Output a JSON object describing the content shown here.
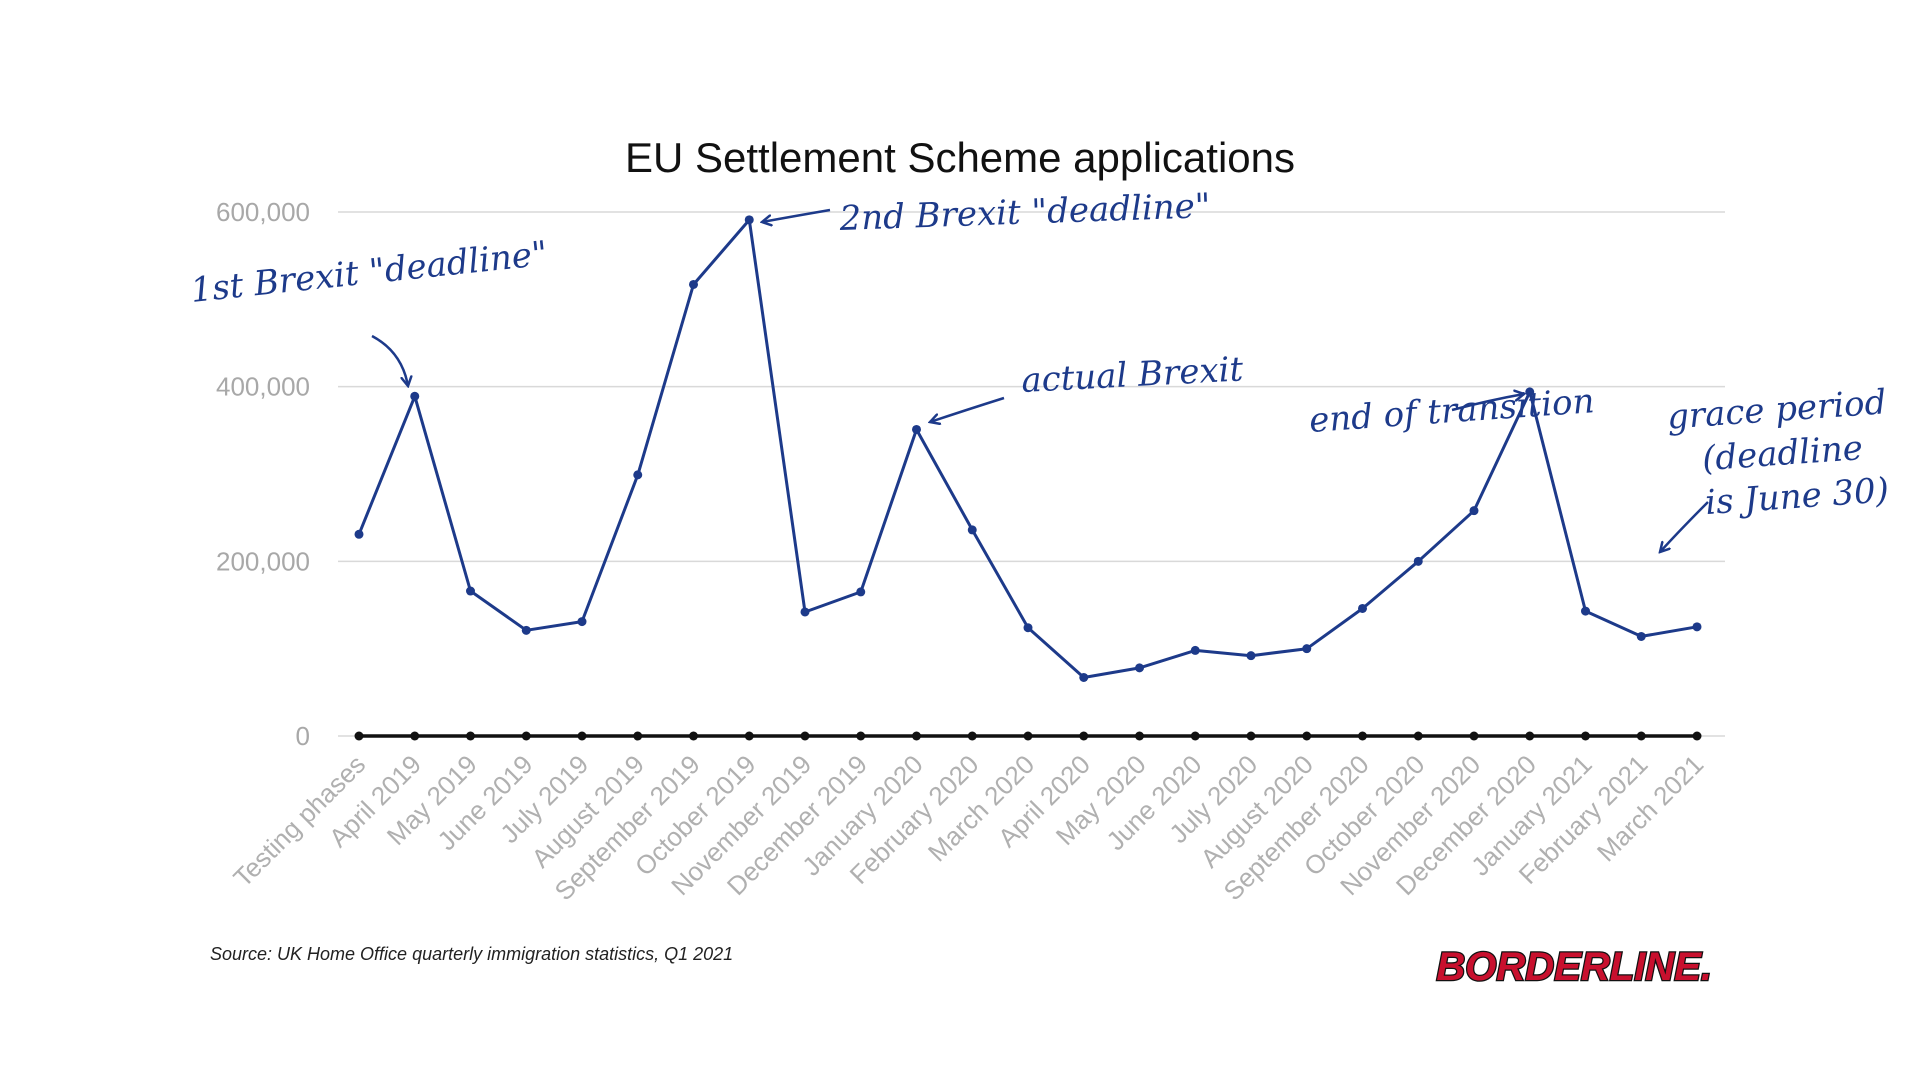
{
  "chart_data": {
    "type": "line",
    "title": "EU Settlement Scheme applications",
    "xlabel": "",
    "ylabel": "",
    "ylim": [
      0,
      600000
    ],
    "yticks": [
      0,
      200000,
      400000,
      600000
    ],
    "ytick_labels": [
      "0",
      "200,000",
      "400,000",
      "600,000"
    ],
    "grid": true,
    "legend": "none",
    "categories": [
      "Testing phases",
      "April 2019",
      "May 2019",
      "June 2019",
      "July 2019",
      "August 2019",
      "September 2019",
      "October 2019",
      "November 2019",
      "December 2019",
      "January 2020",
      "February 2020",
      "March 2020",
      "April 2020",
      "May 2020",
      "June 2020",
      "July 2020",
      "August 2020",
      "September 2020",
      "October 2020",
      "November 2020",
      "December 2020",
      "January 2021",
      "February 2021",
      "March 2021"
    ],
    "series": [
      {
        "color": "#1d3a8a",
        "values": [
          231000,
          389000,
          166000,
          121000,
          131000,
          299000,
          517000,
          591000,
          142000,
          165000,
          351000,
          236000,
          124000,
          67000,
          78000,
          98000,
          92000,
          100000,
          146000,
          200000,
          258000,
          394000,
          143000,
          114000,
          125000
        ]
      },
      {
        "color": "#111111",
        "values": [
          0,
          0,
          0,
          0,
          0,
          0,
          0,
          0,
          0,
          0,
          0,
          0,
          0,
          0,
          0,
          0,
          0,
          0,
          0,
          0,
          0,
          0,
          0,
          0,
          0
        ]
      }
    ],
    "annotations": [
      {
        "text": "1st Brexit \"deadline\"",
        "category": "April 2019"
      },
      {
        "text": "2nd Brexit \"deadline\"",
        "category": "October 2019"
      },
      {
        "text": "actual Brexit",
        "category": "January 2020"
      },
      {
        "text": "end of transition",
        "category": "December 2020"
      },
      {
        "text": "grace period (deadline is June 30)",
        "category": "February 2021"
      }
    ],
    "source": "Source: UK Home Office quarterly immigration statistics, Q1 2021"
  },
  "logo": "BORDERLINE.",
  "colors": {
    "annotation": "#1d3a8a",
    "grid": "#d9d9d9",
    "logo_fill": "#c8102e",
    "logo_outline": "#111111"
  }
}
